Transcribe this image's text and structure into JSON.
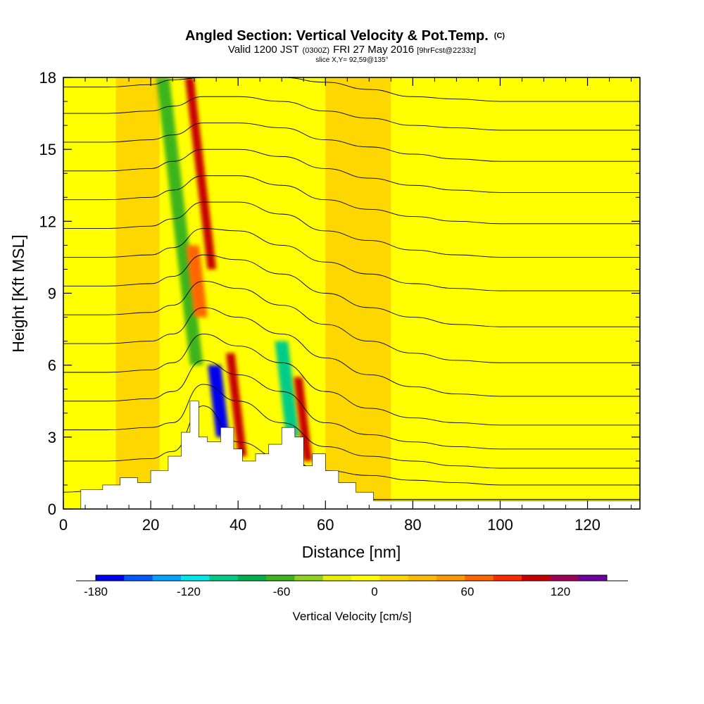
{
  "header": {
    "title": "Angled Section: Vertical Velocity & Pot.Temp.",
    "title_units": "(C)",
    "valid_prefix": "Valid 1200 JST",
    "valid_zulu": "(0300Z)",
    "valid_date": "FRI 27 May 2016",
    "forecast": "[9hrFcst@2233z]",
    "slice": "slice X,Y= 92,59@135°"
  },
  "chart_data": {
    "type": "heatmap",
    "title": "Angled Section: Vertical Velocity & Pot.Temp. (C)",
    "xlabel": "Distance [nm]",
    "ylabel": "Height [Kft MSL]",
    "xlim": [
      0,
      132
    ],
    "ylim": [
      0,
      18
    ],
    "x_ticks": [
      0,
      20,
      40,
      60,
      80,
      100,
      120
    ],
    "y_ticks": [
      0,
      3,
      6,
      9,
      12,
      15,
      18
    ],
    "grid": false,
    "colorbar": {
      "label": "Vertical Velocity [cm/s]",
      "placement": "bottom",
      "min": -180,
      "max": 150,
      "step": 20,
      "tick_labels": [
        -180,
        -120,
        -60,
        0,
        60,
        120
      ],
      "colors": [
        "#0000ee",
        "#0059ff",
        "#00a5ff",
        "#00e8e8",
        "#00cc88",
        "#00b050",
        "#3cb41e",
        "#8cd21e",
        "#e6f000",
        "#ffff00",
        "#ffd700",
        "#ffbb00",
        "#ff9900",
        "#ff6600",
        "#ff2a00",
        "#c80000",
        "#a0005a",
        "#6e00a0"
      ]
    },
    "terrain_profile": [
      [
        0,
        0
      ],
      [
        4,
        0.8
      ],
      [
        9,
        1
      ],
      [
        13,
        1.3
      ],
      [
        17,
        1.1
      ],
      [
        20,
        1.6
      ],
      [
        24,
        2.2
      ],
      [
        27,
        3.2
      ],
      [
        29,
        4.5
      ],
      [
        31,
        3.0
      ],
      [
        33,
        2.8
      ],
      [
        36,
        3.4
      ],
      [
        39,
        2.5
      ],
      [
        41,
        2.0
      ],
      [
        44,
        2.3
      ],
      [
        47,
        2.7
      ],
      [
        50,
        3.4
      ],
      [
        53,
        3.0
      ],
      [
        55,
        1.8
      ],
      [
        57,
        2.3
      ],
      [
        60,
        1.6
      ],
      [
        63,
        1.1
      ],
      [
        67,
        0.7
      ],
      [
        71,
        0.35
      ],
      [
        132,
        0.35
      ]
    ],
    "pot_temp_isentropes_kft": [
      [
        0.7,
        0.8,
        0.9,
        1.0,
        1.3,
        1.1,
        0.7,
        0.5,
        0.4,
        0.4,
        0.4,
        0.4,
        0.4,
        0.4
      ],
      [
        2.0,
        2.0,
        2.1,
        2.4,
        4.3,
        2.8,
        2.1,
        1.6,
        1.4,
        1.2,
        1.1,
        1.0,
        1.0,
        1.0
      ],
      [
        3.3,
        3.3,
        3.4,
        3.6,
        5.2,
        4.5,
        3.6,
        2.6,
        2.2,
        2.0,
        1.8,
        1.7,
        1.7,
        1.7
      ],
      [
        4.5,
        4.5,
        4.6,
        4.9,
        6.2,
        5.6,
        4.9,
        3.6,
        3.1,
        2.8,
        2.6,
        2.5,
        2.5,
        2.5
      ],
      [
        5.7,
        5.7,
        5.8,
        6.1,
        7.3,
        6.8,
        6.1,
        4.9,
        4.2,
        3.8,
        3.6,
        3.5,
        3.5,
        3.5
      ],
      [
        6.9,
        6.9,
        7.0,
        7.3,
        8.4,
        8.0,
        7.3,
        6.3,
        5.6,
        5.1,
        4.8,
        4.7,
        4.7,
        4.7
      ],
      [
        8.1,
        8.1,
        8.2,
        8.5,
        9.5,
        9.2,
        8.5,
        7.7,
        7.0,
        6.5,
        6.2,
        6.1,
        6.1,
        6.1
      ],
      [
        9.3,
        9.3,
        9.4,
        9.7,
        10.6,
        10.4,
        9.8,
        9.0,
        8.4,
        8.0,
        7.7,
        7.6,
        7.6,
        7.6
      ],
      [
        10.5,
        10.5,
        10.6,
        10.9,
        11.7,
        11.6,
        11.0,
        10.3,
        9.8,
        9.4,
        9.2,
        9.1,
        9.1,
        9.1
      ],
      [
        11.7,
        11.7,
        11.8,
        12.1,
        12.8,
        12.8,
        12.3,
        11.6,
        11.2,
        10.8,
        10.6,
        10.5,
        10.5,
        10.5
      ],
      [
        12.9,
        12.9,
        13.0,
        13.3,
        13.9,
        13.9,
        13.5,
        12.9,
        12.5,
        12.2,
        12.0,
        11.9,
        11.9,
        11.9
      ],
      [
        14.1,
        14.1,
        14.2,
        14.5,
        15.0,
        15.0,
        14.7,
        14.2,
        13.8,
        13.5,
        13.3,
        13.2,
        13.2,
        13.2
      ],
      [
        15.3,
        15.3,
        15.4,
        15.6,
        16.1,
        16.1,
        15.9,
        15.4,
        15.1,
        14.8,
        14.6,
        14.5,
        14.5,
        14.5
      ],
      [
        16.5,
        16.5,
        16.6,
        16.8,
        17.2,
        17.2,
        17.0,
        16.6,
        16.3,
        16.0,
        15.9,
        15.8,
        15.8,
        15.8
      ],
      [
        17.6,
        17.6,
        17.7,
        17.9,
        18.0,
        18.0,
        18.0,
        17.8,
        17.5,
        17.2,
        17.1,
        17.0,
        17.0,
        17.0
      ]
    ],
    "isentrope_x_nm": [
      0,
      10,
      20,
      25,
      32,
      40,
      50,
      60,
      70,
      80,
      90,
      100,
      110,
      132
    ],
    "velocity_features": [
      {
        "name": "updraft",
        "value": 120,
        "x": [
          33,
          35
        ],
        "z": [
          10,
          18
        ]
      },
      {
        "name": "downdraft",
        "value": -60,
        "x": [
          29,
          32
        ],
        "z": [
          6,
          18
        ]
      },
      {
        "name": "downdraft",
        "value": -180,
        "x": [
          35,
          38
        ],
        "z": [
          3,
          6
        ]
      },
      {
        "name": "updraft",
        "value": 120,
        "x": [
          40,
          42
        ],
        "z": [
          2.2,
          6.5
        ]
      },
      {
        "name": "downdraft",
        "value": -100,
        "x": [
          51,
          54
        ],
        "z": [
          3,
          7
        ]
      },
      {
        "name": "updraft",
        "value": 120,
        "x": [
          55,
          57
        ],
        "z": [
          2,
          5.5
        ]
      },
      {
        "name": "updraft",
        "value": 90,
        "x": [
          30,
          33
        ],
        "z": [
          8,
          11
        ]
      }
    ]
  }
}
